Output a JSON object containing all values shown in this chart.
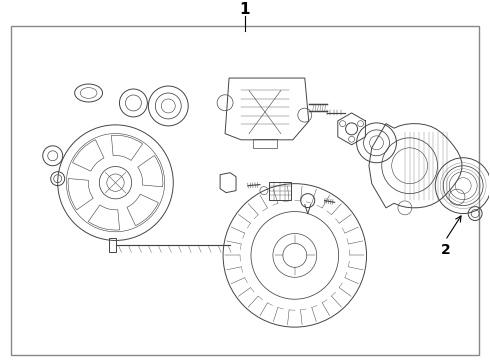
{
  "title": "1",
  "label_2": "2",
  "bg_color": "#ffffff",
  "border_color": "#888888",
  "line_color": "#444444",
  "fig_width": 4.9,
  "fig_height": 3.6,
  "dpi": 100,
  "title_fontsize": 11,
  "label2_fontsize": 10
}
